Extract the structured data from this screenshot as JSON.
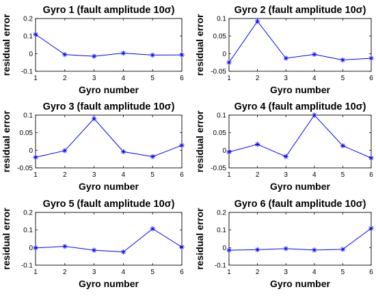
{
  "figure": {
    "line_color": "#0000ff",
    "marker": "asterisk"
  },
  "chart_data": [
    {
      "type": "line",
      "title": "Gyro 1 (fault amplitude 10σ)",
      "xlabel": "Gyro number",
      "ylabel": "residual error",
      "x": [
        1,
        2,
        3,
        4,
        5,
        6
      ],
      "values": [
        0.11,
        -0.005,
        -0.015,
        0.003,
        -0.008,
        -0.007
      ],
      "xlim": [
        1,
        6
      ],
      "ylim": [
        -0.1,
        0.2
      ],
      "xticks": [
        "1",
        "2",
        "3",
        "4",
        "5",
        "6"
      ],
      "yticks": [
        -0.1,
        0,
        0.1,
        0.2
      ],
      "ytick_labels": [
        "-0.1",
        "0",
        "0.1",
        "0.2"
      ],
      "grid": false
    },
    {
      "type": "line",
      "title": "Gyro 2 (fault amplitude 10σ)",
      "xlabel": "Gyro number",
      "ylabel": "residual error",
      "x": [
        1,
        2,
        3,
        4,
        5,
        6
      ],
      "values": [
        -0.025,
        0.092,
        -0.013,
        -0.002,
        -0.018,
        -0.013
      ],
      "xlim": [
        1,
        6
      ],
      "ylim": [
        -0.05,
        0.1
      ],
      "xticks": [
        "1",
        "2",
        "3",
        "4",
        "5",
        "6"
      ],
      "yticks": [
        -0.05,
        0,
        0.05,
        0.1
      ],
      "ytick_labels": [
        "-0.05",
        "0",
        "0.05",
        "0.1"
      ],
      "grid": false
    },
    {
      "type": "line",
      "title": "Gyro 3 (fault amplitude 10σ)",
      "xlabel": "Gyro number",
      "ylabel": "residual error",
      "x": [
        1,
        2,
        3,
        4,
        5,
        6
      ],
      "values": [
        -0.02,
        -0.001,
        0.09,
        -0.004,
        -0.018,
        0.014
      ],
      "xlim": [
        1,
        6
      ],
      "ylim": [
        -0.05,
        0.1
      ],
      "xticks": [
        "1",
        "2",
        "3",
        "4",
        "5",
        "6"
      ],
      "yticks": [
        -0.05,
        0,
        0.05,
        0.1
      ],
      "ytick_labels": [
        "-0.05",
        "0",
        "0.05",
        "0.1"
      ],
      "grid": false
    },
    {
      "type": "line",
      "title": "Gyro 4 (fault amplitude 10σ)",
      "xlabel": "Gyro number",
      "ylabel": "residual error",
      "x": [
        1,
        2,
        3,
        4,
        5,
        6
      ],
      "values": [
        -0.005,
        0.017,
        -0.018,
        0.1,
        0.013,
        -0.022
      ],
      "xlim": [
        1,
        6
      ],
      "ylim": [
        -0.05,
        0.1
      ],
      "xticks": [
        "1",
        "2",
        "3",
        "4",
        "5",
        "6"
      ],
      "yticks": [
        -0.05,
        0,
        0.05,
        0.1
      ],
      "ytick_labels": [
        "-0.05",
        "0",
        "0.05",
        "0.1"
      ],
      "grid": false
    },
    {
      "type": "line",
      "title": "Gyro 5 (fault amplitude 10σ)",
      "xlabel": "Gyro number",
      "ylabel": "residual error",
      "x": [
        1,
        2,
        3,
        4,
        5,
        6
      ],
      "values": [
        -0.002,
        0.007,
        -0.015,
        -0.025,
        0.107,
        0.003
      ],
      "xlim": [
        1,
        6
      ],
      "ylim": [
        -0.1,
        0.2
      ],
      "xticks": [
        "1",
        "2",
        "3",
        "4",
        "5",
        "6"
      ],
      "yticks": [
        -0.1,
        0,
        0.1,
        0.2
      ],
      "ytick_labels": [
        "-0.1",
        "0",
        "0.1",
        "0.2"
      ],
      "grid": false
    },
    {
      "type": "line",
      "title": "Gyro 6 (fault amplitude 10σ)",
      "xlabel": "Gyro number",
      "ylabel": "residual error",
      "x": [
        1,
        2,
        3,
        4,
        5,
        6
      ],
      "values": [
        -0.015,
        -0.012,
        -0.006,
        -0.014,
        -0.01,
        0.11
      ],
      "xlim": [
        1,
        6
      ],
      "ylim": [
        -0.1,
        0.2
      ],
      "xticks": [
        "1",
        "2",
        "3",
        "4",
        "5",
        "6"
      ],
      "yticks": [
        -0.1,
        0,
        0.1,
        0.2
      ],
      "ytick_labels": [
        "-0.1",
        "0",
        "0.1",
        "0.2"
      ],
      "grid": false
    }
  ]
}
